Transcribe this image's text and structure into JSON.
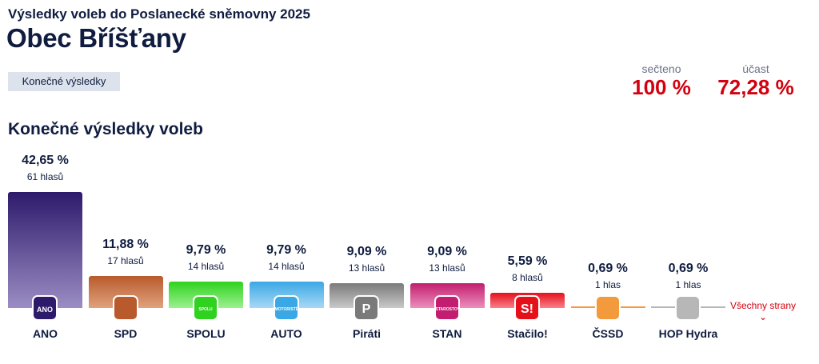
{
  "header": {
    "supertitle": "Výsledky voleb do Poslanecké sněmovny 2025",
    "title": "Obec Bříšťany",
    "status_chip": "Konečné výsledky"
  },
  "stats": {
    "counted_label": "sečteno",
    "counted_value": "100 %",
    "turnout_label": "účast",
    "turnout_value": "72,28 %"
  },
  "section_title": "Konečné výsledky voleb",
  "all_parties_link": "Všechny strany",
  "colors": {
    "accent_red": "#d4000f",
    "navy": "#0f1c3f"
  },
  "chart_data": {
    "type": "bar",
    "title": "Konečné výsledky voleb",
    "categories": [
      "ANO",
      "SPD",
      "SPOLU",
      "AUTO",
      "Piráti",
      "STAN",
      "Stačilo!",
      "ČSSD",
      "HOP Hydra"
    ],
    "values": [
      42.65,
      11.88,
      9.79,
      9.79,
      9.09,
      9.09,
      5.59,
      0.69,
      0.69
    ],
    "value_labels": [
      "42,65 %",
      "11,88 %",
      "9,79 %",
      "9,79 %",
      "9,09 %",
      "9,09 %",
      "5,59 %",
      "0,69 %",
      "0,69 %"
    ],
    "vote_labels": [
      "61 hlasů",
      "17 hlasů",
      "14 hlasů",
      "14 hlasů",
      "13 hlasů",
      "13 hlasů",
      "8 hlasů",
      "1 hlas",
      "1 hlas"
    ],
    "logo_texts": [
      "ANO",
      "",
      "SPOLU",
      "MOTORISTÉ",
      "P",
      "STAROSTOVÉ",
      "S!",
      "",
      ""
    ],
    "colors": [
      [
        "#2e1a6b",
        "#9b8dc4"
      ],
      [
        "#b85a2c",
        "#e0a27d"
      ],
      [
        "#2fd21e",
        "#9cf08f"
      ],
      [
        "#3aa8e4",
        "#a8d8f4"
      ],
      [
        "#7a7a7a",
        "#c9c9c9"
      ],
      [
        "#c21d6e",
        "#eb8fbd"
      ],
      [
        "#e5101a",
        "#f7808a"
      ],
      [
        "#f39a3c",
        "#f7b97a"
      ],
      [
        "#b7b7b7",
        "#d9d9d9"
      ]
    ],
    "ylim": [
      0,
      42.65
    ]
  }
}
